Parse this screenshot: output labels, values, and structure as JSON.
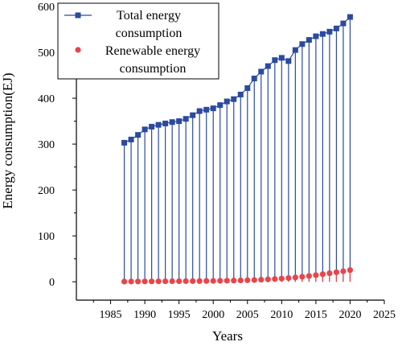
{
  "chart_data": {
    "type": "line",
    "xlabel": "Years",
    "ylabel": "Energy consumption(EJ)",
    "xlim": [
      1980,
      2025
    ],
    "ylim": [
      -40,
      600
    ],
    "xticks": [
      1985,
      1990,
      1995,
      2000,
      2005,
      2010,
      2015,
      2020,
      2025
    ],
    "yticks": [
      0,
      100,
      200,
      300,
      400,
      500,
      600
    ],
    "grid": false,
    "legend_position": "top-left",
    "x": [
      1987,
      1988,
      1989,
      1990,
      1991,
      1992,
      1993,
      1994,
      1995,
      1996,
      1997,
      1998,
      1999,
      2000,
      2001,
      2002,
      2003,
      2004,
      2005,
      2006,
      2007,
      2008,
      2009,
      2010,
      2011,
      2012,
      2013,
      2014,
      2015,
      2016,
      2017,
      2018,
      2019,
      2020
    ],
    "series": [
      {
        "name": "Total energy consumption",
        "color": "#2b4aa0",
        "marker": "square",
        "values": [
          303,
          310,
          320,
          332,
          338,
          342,
          345,
          348,
          350,
          355,
          363,
          372,
          375,
          378,
          385,
          393,
          398,
          408,
          422,
          443,
          458,
          470,
          483,
          488,
          481,
          505,
          518,
          527,
          535,
          540,
          545,
          552,
          563,
          577
        ]
      },
      {
        "name": "Renewable energy consumption",
        "color": "#e8454b",
        "marker": "circle",
        "values": [
          0.5,
          0.6,
          0.7,
          0.8,
          0.9,
          1.0,
          1.1,
          1.2,
          1.3,
          1.4,
          1.5,
          1.6,
          1.8,
          2.0,
          2.2,
          2.4,
          2.7,
          3.0,
          3.4,
          3.9,
          4.5,
          5.2,
          6.0,
          7.0,
          8.2,
          9.5,
          11.0,
          12.7,
          14.5,
          16.5,
          18.6,
          20.8,
          23.0,
          25.5
        ]
      }
    ]
  }
}
